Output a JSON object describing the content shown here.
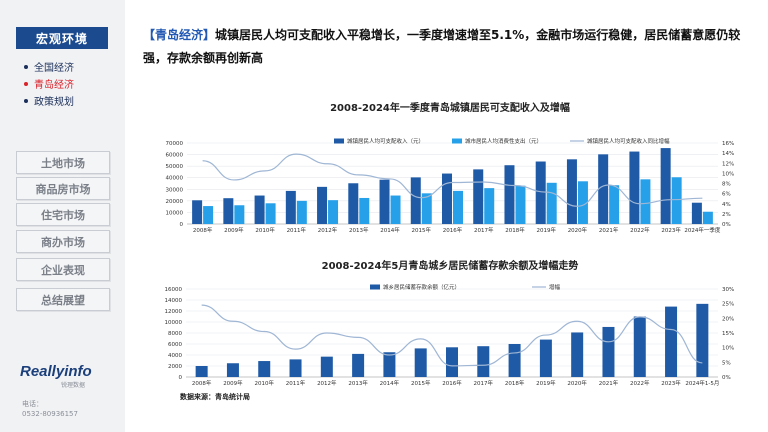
{
  "sidebar": {
    "section_title": "宏观环境",
    "subitems": [
      "全国经济",
      "青岛经济",
      "政策规划"
    ],
    "active_subitem": 1,
    "buttons": [
      "土地市场",
      "商品房市场",
      "住宅市场",
      "商办市场",
      "企业表现",
      "总结展望"
    ],
    "logo": "Reallyinfo",
    "logo_sub": "锐理数据",
    "contact_label": "电话：",
    "contact_phone": "0532-80936157"
  },
  "headline": {
    "tag": "【青岛经济】",
    "text": "城镇居民人均可支配收入平稳增长，一季度增速增至5.1%，金融市场运行稳健，居民储蓄意愿仍较强，存款余额再创新高"
  },
  "source": "数据来源：青岛统计局",
  "colors": {
    "bar_dark": "#1f5aa6",
    "bar_light": "#26a0e8",
    "line": "#9fb6d4",
    "accent": "#1b4a8f",
    "active": "#d9222a"
  },
  "chart_data": [
    {
      "type": "bar",
      "title": "2008-2024年一季度青岛城镇居民可支配收入及增幅",
      "categories": [
        "2008年",
        "2009年",
        "2010年",
        "2011年",
        "2012年",
        "2013年",
        "2014年",
        "2015年",
        "2016年",
        "2017年",
        "2018年",
        "2019年",
        "2020年",
        "2021年",
        "2022年",
        "2023年",
        "2024年一季度"
      ],
      "series": [
        {
          "name": "城镇居民人均可支配收入（元）",
          "axis": "left",
          "values": [
            20500,
            22300,
            24600,
            28600,
            32100,
            35200,
            38300,
            40300,
            43600,
            47200,
            50800,
            54000,
            55900,
            60200,
            62600,
            65600,
            18400
          ]
        },
        {
          "name": "城市居民人均消费性支出（元）",
          "axis": "left",
          "values": [
            15500,
            16200,
            17900,
            20000,
            20600,
            22500,
            24600,
            26500,
            28600,
            31000,
            33100,
            35600,
            36900,
            33500,
            38600,
            40400,
            10600
          ]
        },
        {
          "name": "城镇居民人均可支配收入同比增幅",
          "type": "line",
          "axis": "right",
          "values": [
            12.5,
            8.7,
            10.5,
            13.8,
            11.9,
            9.7,
            8.9,
            5.2,
            8.2,
            8.3,
            7.6,
            6.3,
            3.5,
            7.7,
            4.0,
            4.8,
            5.1
          ]
        }
      ],
      "ylim_left": [
        0,
        70000
      ],
      "yticks_left": [
        0,
        10000,
        20000,
        30000,
        40000,
        50000,
        60000,
        70000
      ],
      "ylim_right": [
        0,
        16
      ],
      "yticks_right": [
        "0%",
        "2%",
        "4%",
        "6%",
        "8%",
        "10%",
        "12%",
        "14%",
        "16%"
      ],
      "legend": "top"
    },
    {
      "type": "bar",
      "title": "2008-2024年5月青岛城乡居民储蓄存款余额及增幅走势",
      "categories": [
        "2008年",
        "2009年",
        "2010年",
        "2011年",
        "2012年",
        "2013年",
        "2014年",
        "2015年",
        "2016年",
        "2017年",
        "2018年",
        "2019年",
        "2020年",
        "2021年",
        "2022年",
        "2023年",
        "2024年1-5月"
      ],
      "series": [
        {
          "name": "城乡居民储蓄存款余额（亿元）",
          "axis": "left",
          "values": [
            2000,
            2500,
            2900,
            3200,
            3700,
            4200,
            4500,
            5200,
            5400,
            5600,
            6000,
            6800,
            8100,
            9100,
            11000,
            12800,
            13300
          ]
        },
        {
          "name": "增幅",
          "type": "line",
          "axis": "right",
          "values": [
            24.5,
            19.0,
            15.5,
            9.5,
            15.0,
            13.5,
            7.5,
            13.0,
            3.8,
            4.0,
            8.2,
            14.3,
            19.0,
            12.0,
            20.5,
            16.2,
            4.8
          ]
        }
      ],
      "ylim_left": [
        0,
        16000
      ],
      "yticks_left": [
        0,
        2000,
        4000,
        6000,
        8000,
        10000,
        12000,
        14000,
        16000
      ],
      "ylim_right": [
        0,
        30
      ],
      "yticks_right": [
        "0%",
        "5%",
        "10%",
        "15%",
        "20%",
        "25%",
        "30%"
      ],
      "legend": "top"
    }
  ]
}
